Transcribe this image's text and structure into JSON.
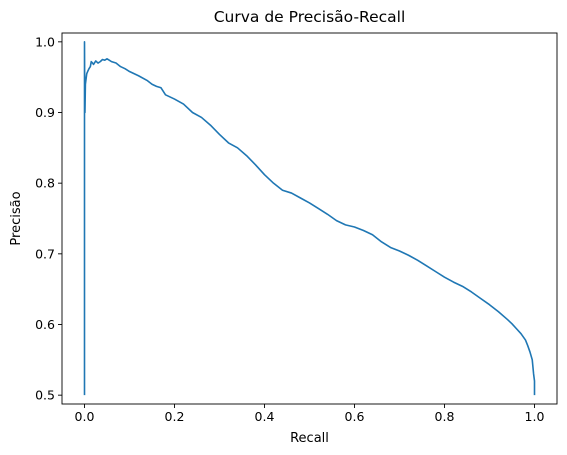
{
  "chart_data": {
    "type": "line",
    "title": "Curva de Precisão-Recall",
    "xlabel": "Recall",
    "ylabel": "Precisão",
    "xlim": [
      -0.05,
      1.05
    ],
    "ylim": [
      0.4875,
      1.0125
    ],
    "xticks": [
      0.0,
      0.2,
      0.4,
      0.6,
      0.8,
      1.0
    ],
    "xtick_labels": [
      "0.0",
      "0.2",
      "0.4",
      "0.6",
      "0.8",
      "1.0"
    ],
    "yticks": [
      0.5,
      0.6,
      0.7,
      0.8,
      0.9,
      1.0
    ],
    "ytick_labels": [
      "0.5",
      "0.6",
      "0.7",
      "0.8",
      "0.9",
      "1.0"
    ],
    "grid": false,
    "legend": "none",
    "series": [
      {
        "color": "#1f77b4",
        "x": [
          0.0,
          0.0,
          0.0005,
          0.001,
          0.002,
          0.003,
          0.004,
          0.005,
          0.007,
          0.01,
          0.013,
          0.015,
          0.018,
          0.02,
          0.025,
          0.03,
          0.035,
          0.04,
          0.045,
          0.05,
          0.055,
          0.06,
          0.07,
          0.08,
          0.09,
          0.1,
          0.12,
          0.14,
          0.15,
          0.16,
          0.17,
          0.18,
          0.2,
          0.22,
          0.24,
          0.26,
          0.28,
          0.3,
          0.32,
          0.34,
          0.36,
          0.38,
          0.4,
          0.42,
          0.44,
          0.46,
          0.48,
          0.5,
          0.52,
          0.54,
          0.56,
          0.58,
          0.6,
          0.62,
          0.64,
          0.66,
          0.68,
          0.7,
          0.72,
          0.74,
          0.76,
          0.78,
          0.8,
          0.82,
          0.84,
          0.86,
          0.88,
          0.9,
          0.92,
          0.94,
          0.95,
          0.96,
          0.97,
          0.98,
          0.985,
          0.99,
          0.995,
          0.998,
          1.0,
          1.0
        ],
        "y": [
          0.5,
          1.0,
          0.93,
          0.9,
          0.94,
          0.945,
          0.95,
          0.955,
          0.958,
          0.962,
          0.965,
          0.972,
          0.97,
          0.968,
          0.973,
          0.97,
          0.972,
          0.975,
          0.974,
          0.976,
          0.974,
          0.972,
          0.97,
          0.965,
          0.962,
          0.958,
          0.952,
          0.945,
          0.94,
          0.937,
          0.935,
          0.925,
          0.919,
          0.912,
          0.9,
          0.893,
          0.882,
          0.869,
          0.857,
          0.85,
          0.839,
          0.826,
          0.812,
          0.8,
          0.79,
          0.786,
          0.779,
          0.772,
          0.764,
          0.756,
          0.747,
          0.741,
          0.738,
          0.733,
          0.727,
          0.717,
          0.709,
          0.704,
          0.698,
          0.691,
          0.683,
          0.675,
          0.667,
          0.66,
          0.654,
          0.646,
          0.637,
          0.628,
          0.618,
          0.607,
          0.601,
          0.594,
          0.587,
          0.578,
          0.57,
          0.561,
          0.55,
          0.53,
          0.52,
          0.5
        ]
      }
    ]
  }
}
